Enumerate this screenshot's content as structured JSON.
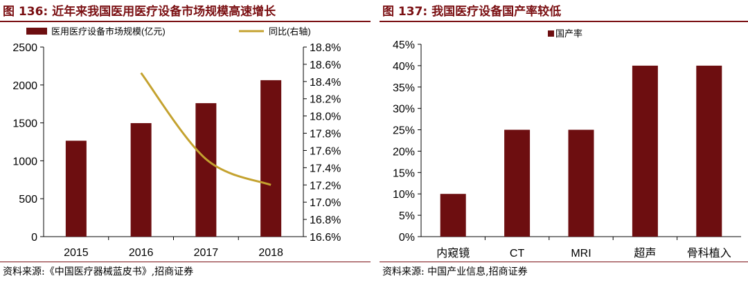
{
  "colors": {
    "bar": "#6d0e10",
    "line": "#c4a22f",
    "accent": "#7a0f12"
  },
  "left": {
    "title": "图 136: 近年来我国医用医疗设备市场规模高速增长",
    "source": "资料来源:《中国医疗器械蓝皮书》,招商证券",
    "legend": {
      "bar": "医用医疗设备市场规模(亿元)",
      "line": "同比(右轴)"
    }
  },
  "right": {
    "title": "图 137: 我国医疗设备国产率较低",
    "source": "资料来源: 中国产业信息,招商证券",
    "legend": {
      "bar": "国产率"
    }
  },
  "chart_data": [
    {
      "type": "bar",
      "title": "图 136: 近年来我国医用医疗设备市场规模高速增长",
      "categories": [
        "2015",
        "2016",
        "2017",
        "2018"
      ],
      "series": [
        {
          "name": "医用医疗设备市场规模(亿元)",
          "type": "bar",
          "axis": "left",
          "values": [
            1265,
            1497,
            1760,
            2063
          ]
        },
        {
          "name": "同比(右轴)",
          "type": "line",
          "axis": "right",
          "values": [
            null,
            18.5,
            17.5,
            17.2
          ]
        }
      ],
      "ylim": [
        0,
        2500
      ],
      "yticks": [
        "0",
        "500",
        "1000",
        "1500",
        "2000",
        "2500"
      ],
      "y2lim": [
        16.6,
        18.8
      ],
      "y2ticks": [
        "16.6%",
        "16.8%",
        "17.0%",
        "17.2%",
        "17.4%",
        "17.6%",
        "17.8%",
        "18.0%",
        "18.2%",
        "18.4%",
        "18.6%",
        "18.8%"
      ],
      "legend_position": "top",
      "grid": false
    },
    {
      "type": "bar",
      "title": "图 137: 我国医疗设备国产率较低",
      "categories": [
        "内窥镜",
        "CT",
        "MRI",
        "超声",
        "骨科植入"
      ],
      "series": [
        {
          "name": "国产率",
          "values": [
            10,
            25,
            25,
            40,
            40
          ]
        }
      ],
      "ylim": [
        0,
        45
      ],
      "yticks": [
        "0%",
        "5%",
        "10%",
        "15%",
        "20%",
        "25%",
        "30%",
        "35%",
        "40%",
        "45%"
      ],
      "legend_position": "top-left",
      "grid": false
    }
  ]
}
